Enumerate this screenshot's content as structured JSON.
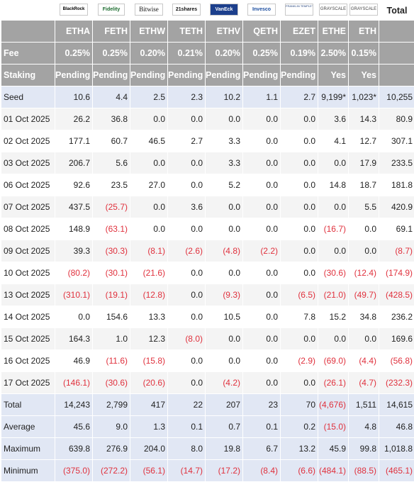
{
  "logos": [
    {
      "issuer": "blackrock",
      "text": "BlackRock"
    },
    {
      "issuer": "fidelity",
      "text": "Fidelity"
    },
    {
      "issuer": "bitwise",
      "text": "Bitwise"
    },
    {
      "issuer": "21shares",
      "text": "21shares"
    },
    {
      "issuer": "vaneck",
      "text": "VanEck"
    },
    {
      "issuer": "invesco",
      "text": "Invesco"
    },
    {
      "issuer": "franklin",
      "text": "FRANKLIN TEMPLETON"
    },
    {
      "issuer": "grayscale",
      "text": "GRAYSCALE"
    },
    {
      "issuer": "grayscale",
      "text": "GRAYSCALE"
    }
  ],
  "total_header": "Total",
  "tickers": [
    "ETHA",
    "FETH",
    "ETHW",
    "TETH",
    "ETHV",
    "QETH",
    "EZET",
    "ETHE",
    "ETH"
  ],
  "fee_label": "Fee",
  "fees": [
    "0.25%",
    "0.25%",
    "0.20%",
    "0.21%",
    "0.20%",
    "0.25%",
    "0.19%",
    "2.50%",
    "0.15%"
  ],
  "staking_label": "Staking",
  "staking": [
    "Pending",
    "Pending",
    "Pending",
    "Pending",
    "Pending",
    "Pending",
    "Pending",
    "Yes",
    "Yes"
  ],
  "seed": {
    "label": "Seed",
    "values": [
      "10.6",
      "4.4",
      "2.5",
      "2.3",
      "10.2",
      "1.1",
      "2.7",
      "9,199*",
      "1,023*",
      "10,255"
    ]
  },
  "rows": [
    {
      "date": "01 Oct 2025",
      "values": [
        "26.2",
        "36.8",
        "0.0",
        "0.0",
        "0.0",
        "0.0",
        "0.0",
        "3.6",
        "14.3",
        "80.9"
      ]
    },
    {
      "date": "02 Oct 2025",
      "values": [
        "177.1",
        "60.7",
        "46.5",
        "2.7",
        "3.3",
        "0.0",
        "0.0",
        "4.1",
        "12.7",
        "307.1"
      ]
    },
    {
      "date": "03 Oct 2025",
      "values": [
        "206.7",
        "5.6",
        "0.0",
        "0.0",
        "3.3",
        "0.0",
        "0.0",
        "0.0",
        "17.9",
        "233.5"
      ]
    },
    {
      "date": "06 Oct 2025",
      "values": [
        "92.6",
        "23.5",
        "27.0",
        "0.0",
        "5.2",
        "0.0",
        "0.0",
        "14.8",
        "18.7",
        "181.8"
      ]
    },
    {
      "date": "07 Oct 2025",
      "values": [
        "437.5",
        "(25.7)",
        "0.0",
        "3.6",
        "0.0",
        "0.0",
        "0.0",
        "0.0",
        "5.5",
        "420.9"
      ]
    },
    {
      "date": "08 Oct 2025",
      "values": [
        "148.9",
        "(63.1)",
        "0.0",
        "0.0",
        "0.0",
        "0.0",
        "0.0",
        "(16.7)",
        "0.0",
        "69.1"
      ]
    },
    {
      "date": "09 Oct 2025",
      "values": [
        "39.3",
        "(30.3)",
        "(8.1)",
        "(2.6)",
        "(4.8)",
        "(2.2)",
        "0.0",
        "0.0",
        "0.0",
        "(8.7)"
      ]
    },
    {
      "date": "10 Oct 2025",
      "values": [
        "(80.2)",
        "(30.1)",
        "(21.6)",
        "0.0",
        "0.0",
        "0.0",
        "0.0",
        "(30.6)",
        "(12.4)",
        "(174.9)"
      ]
    },
    {
      "date": "13 Oct 2025",
      "values": [
        "(310.1)",
        "(19.1)",
        "(12.8)",
        "0.0",
        "(9.3)",
        "0.0",
        "(6.5)",
        "(21.0)",
        "(49.7)",
        "(428.5)"
      ]
    },
    {
      "date": "14 Oct 2025",
      "values": [
        "0.0",
        "154.6",
        "13.3",
        "0.0",
        "10.5",
        "0.0",
        "7.8",
        "15.2",
        "34.8",
        "236.2"
      ]
    },
    {
      "date": "15 Oct 2025",
      "values": [
        "164.3",
        "1.0",
        "12.3",
        "(8.0)",
        "0.0",
        "0.0",
        "0.0",
        "0.0",
        "0.0",
        "169.6"
      ]
    },
    {
      "date": "16 Oct 2025",
      "values": [
        "46.9",
        "(11.6)",
        "(15.8)",
        "0.0",
        "0.0",
        "0.0",
        "(2.9)",
        "(69.0)",
        "(4.4)",
        "(56.8)"
      ]
    },
    {
      "date": "17 Oct 2025",
      "values": [
        "(146.1)",
        "(30.6)",
        "(20.6)",
        "0.0",
        "(4.2)",
        "0.0",
        "0.0",
        "(26.1)",
        "(4.7)",
        "(232.3)"
      ]
    }
  ],
  "stats": [
    {
      "label": "Total",
      "values": [
        "14,243",
        "2,799",
        "417",
        "22",
        "207",
        "23",
        "70",
        "(4,676)",
        "1,511",
        "14,615"
      ]
    },
    {
      "label": "Average",
      "values": [
        "45.6",
        "9.0",
        "1.3",
        "0.1",
        "0.7",
        "0.1",
        "0.2",
        "(15.0)",
        "4.8",
        "46.8"
      ]
    },
    {
      "label": "Maximum",
      "values": [
        "639.8",
        "276.9",
        "204.0",
        "8.0",
        "19.8",
        "6.7",
        "13.2",
        "45.9",
        "99.8",
        "1,018.8"
      ]
    },
    {
      "label": "Minimum",
      "values": [
        "(375.0)",
        "(272.2)",
        "(56.1)",
        "(14.7)",
        "(17.2)",
        "(8.4)",
        "(6.6)",
        "(484.1)",
        "(88.5)",
        "(465.1)"
      ]
    }
  ],
  "colors": {
    "header_bg": "#a3a3a3",
    "seed_stat_bg": "#e1e7f4",
    "negative": "#e0313d"
  }
}
